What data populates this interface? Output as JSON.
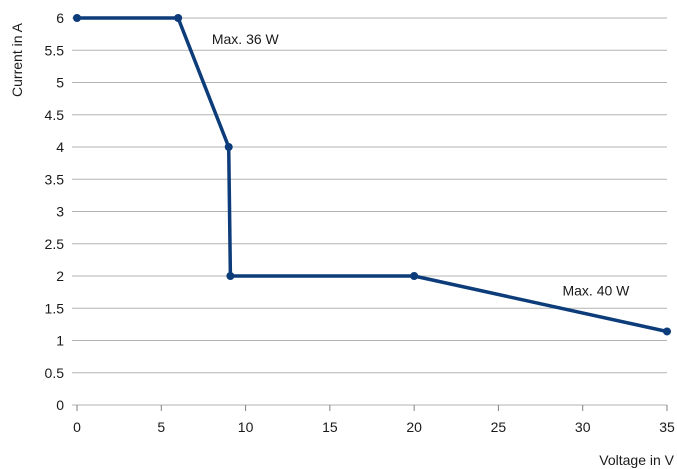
{
  "chart_data": {
    "type": "line",
    "xlabel": "Voltage in V",
    "ylabel": "Current in A",
    "xlim": [
      0,
      35
    ],
    "ylim": [
      0,
      6
    ],
    "xticks": [
      0,
      5,
      10,
      15,
      20,
      25,
      30,
      35
    ],
    "yticks": [
      0,
      0.5,
      1,
      1.5,
      2,
      2.5,
      3,
      3.5,
      4,
      4.5,
      5,
      5.5,
      6
    ],
    "grid": "horizontal",
    "series": [
      {
        "color": "#0d3c7a",
        "points": [
          {
            "x": 0,
            "y": 6
          },
          {
            "x": 6,
            "y": 6
          },
          {
            "x": 9,
            "y": 4
          },
          {
            "x": 9.1,
            "y": 2
          },
          {
            "x": 20,
            "y": 2
          },
          {
            "x": 35,
            "y": 1.14
          }
        ]
      }
    ],
    "annotations": [
      {
        "text": "Max. 36 W",
        "x": 8,
        "y": 5.6
      },
      {
        "text": "Max. 40 W",
        "x": 28.8,
        "y": 1.7
      }
    ]
  }
}
